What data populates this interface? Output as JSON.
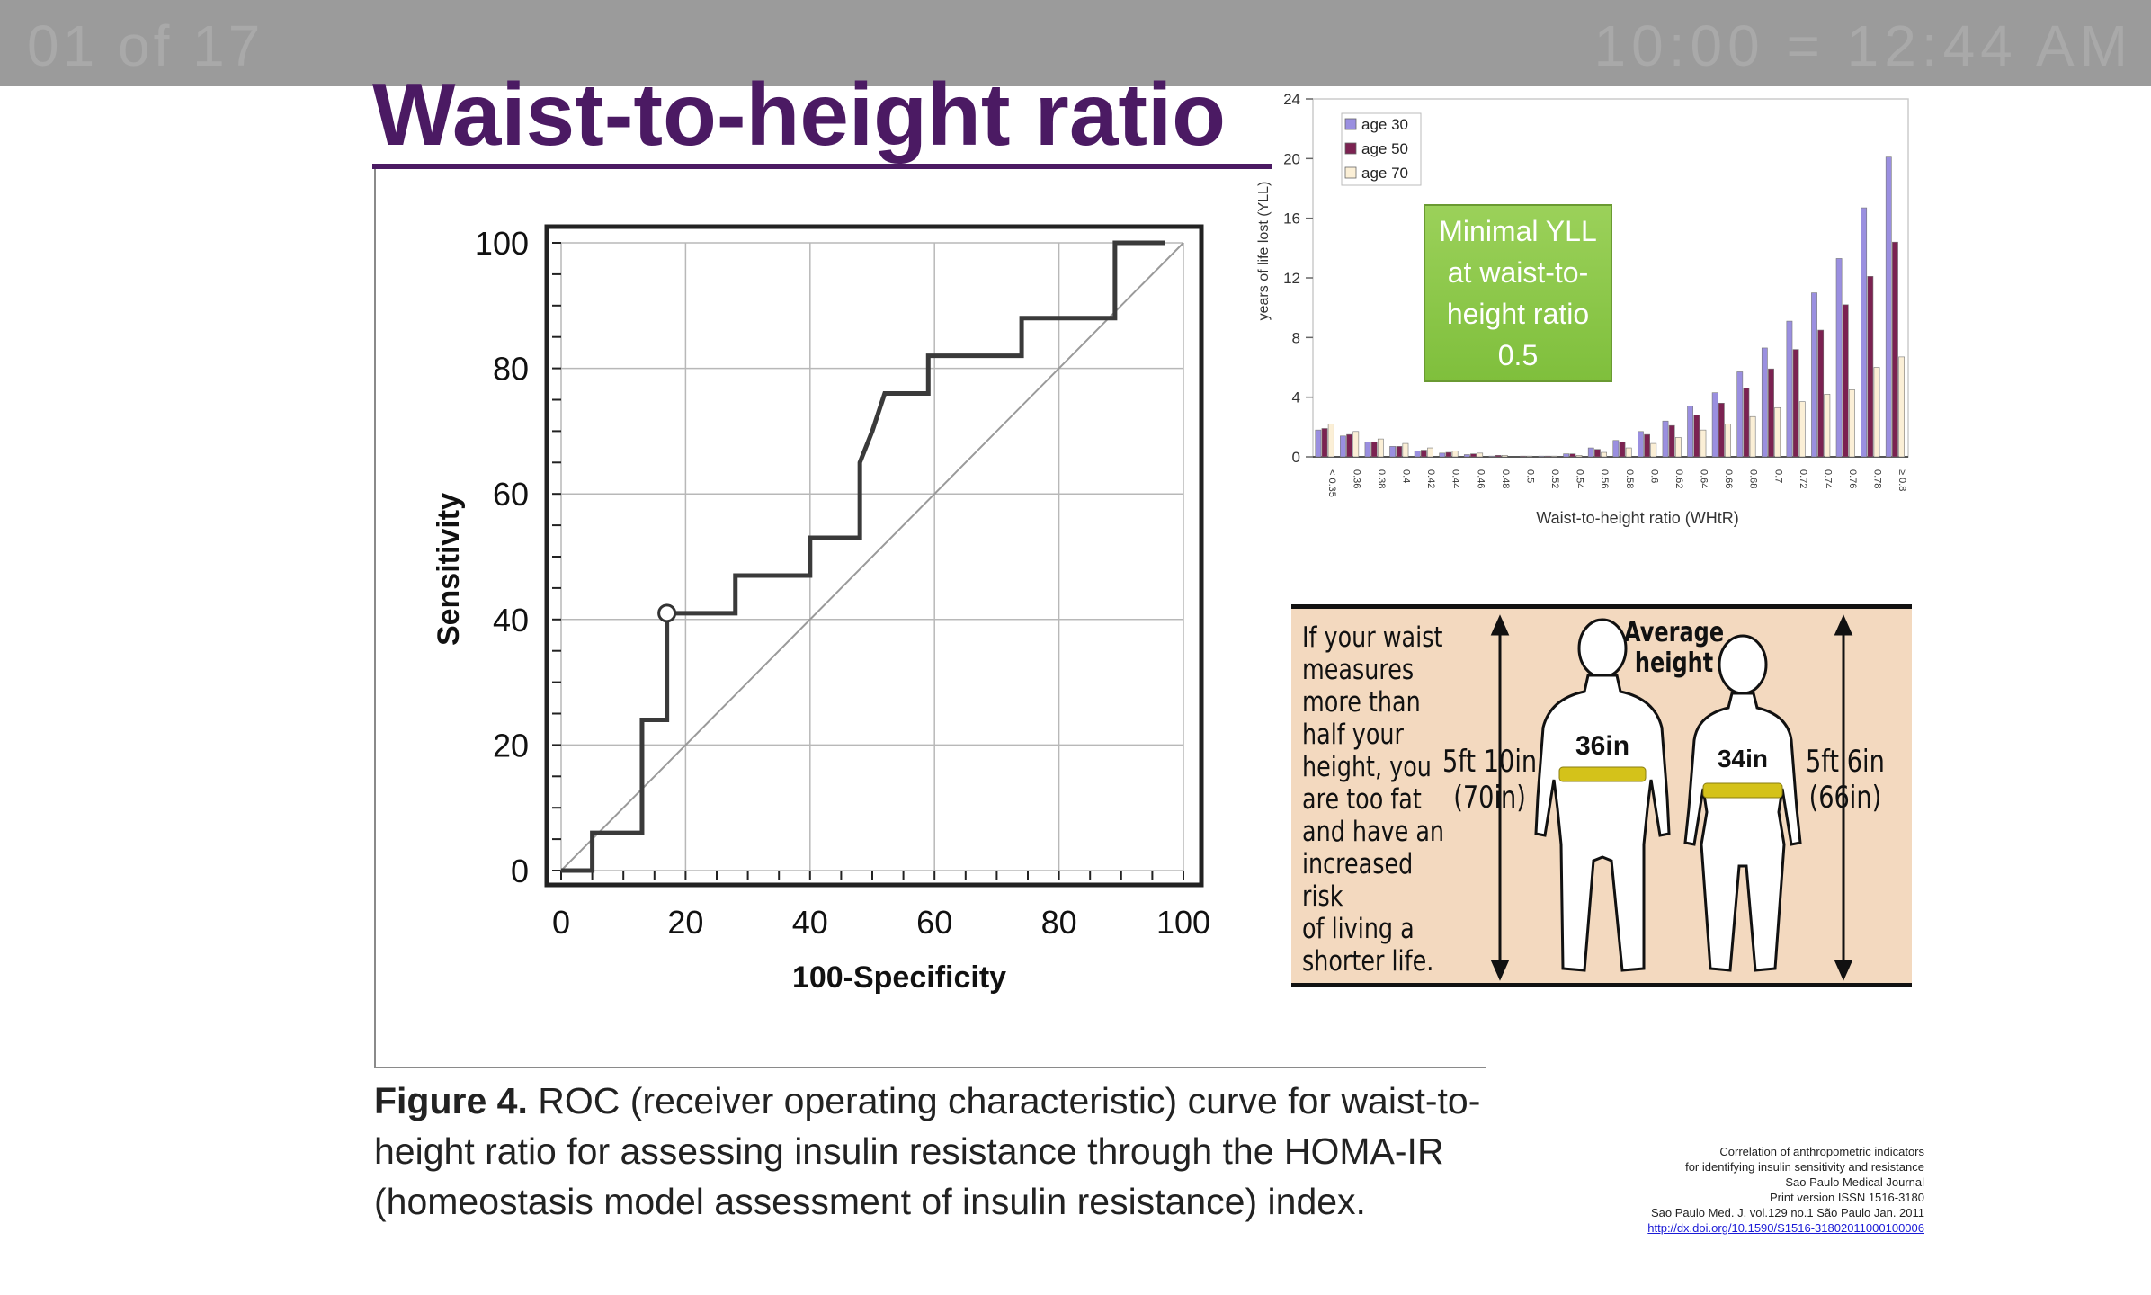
{
  "topbar": {
    "left_ghost": "01 of 17",
    "right_ghost": "10:00 = 12:44 AM"
  },
  "slide": {
    "title": "Waist-to-height ratio"
  },
  "roc_chart": {
    "chart_data": {
      "type": "line",
      "xlabel": "100-Specificity",
      "ylabel": "Sensitivity",
      "xlim": [
        0,
        100
      ],
      "ylim": [
        0,
        100
      ],
      "x_ticks": [
        "0",
        "20",
        "40",
        "60",
        "80",
        "100"
      ],
      "y_ticks": [
        "0",
        "20",
        "40",
        "60",
        "80",
        "100"
      ],
      "grid": true,
      "series": [
        {
          "points": [
            [
              0,
              0
            ],
            [
              5,
              0
            ],
            [
              5,
              6
            ],
            [
              13,
              6
            ],
            [
              13,
              24
            ],
            [
              17,
              24
            ],
            [
              17,
              41
            ],
            [
              28,
              41
            ],
            [
              28,
              47
            ],
            [
              40,
              47
            ],
            [
              40,
              53
            ],
            [
              48,
              53
            ],
            [
              48,
              65
            ],
            [
              50,
              70
            ],
            [
              52,
              76
            ],
            [
              59,
              76
            ],
            [
              59,
              82
            ],
            [
              74,
              82
            ],
            [
              74,
              88
            ],
            [
              89,
              88
            ],
            [
              89,
              100
            ],
            [
              97,
              100
            ]
          ]
        },
        {
          "points": [
            [
              0,
              0
            ],
            [
              100,
              100
            ]
          ]
        }
      ],
      "marker": {
        "x": 17,
        "y": 41
      }
    }
  },
  "yll_chart": {
    "chart_data": {
      "type": "bar",
      "ylabel": "years of life lost (YLL)",
      "xlabel": "Waist-to-height ratio (WHtR)",
      "ylim": [
        0,
        24
      ],
      "y_ticks": [
        "0",
        "4",
        "8",
        "12",
        "16",
        "20",
        "24"
      ],
      "legend_position": "top-left",
      "categories": [
        "< 0.35",
        "0.36",
        "0.38",
        "0.4",
        "0.42",
        "0.44",
        "0.46",
        "0.48",
        "0.5",
        "0.52",
        "0.54",
        "0.56",
        "0.58",
        "0.6",
        "0.62",
        "0.64",
        "0.66",
        "0.68",
        "0.7",
        "0.72",
        "0.74",
        "0.76",
        "0.78",
        "≥ 0.8"
      ],
      "series": [
        {
          "name": "age 30",
          "color": "#9a8fe0",
          "values": [
            1.8,
            1.4,
            1.0,
            0.7,
            0.4,
            0.25,
            0.15,
            0.05,
            0.0,
            0.05,
            0.2,
            0.6,
            1.1,
            1.7,
            2.4,
            3.4,
            4.3,
            5.7,
            7.3,
            9.1,
            11.0,
            13.3,
            16.7,
            20.1
          ]
        },
        {
          "name": "age 50",
          "color": "#7b2251",
          "values": [
            1.9,
            1.5,
            1.0,
            0.7,
            0.45,
            0.3,
            0.2,
            0.1,
            0.05,
            0.05,
            0.2,
            0.5,
            1.0,
            1.5,
            2.1,
            2.8,
            3.6,
            4.6,
            5.9,
            7.2,
            8.5,
            10.2,
            12.1,
            14.4
          ]
        },
        {
          "name": "age 70",
          "color": "#fbefd6",
          "values": [
            2.2,
            1.7,
            1.2,
            0.9,
            0.6,
            0.4,
            0.25,
            0.1,
            0.05,
            0.05,
            0.1,
            0.3,
            0.6,
            0.9,
            1.3,
            1.8,
            2.2,
            2.7,
            3.3,
            3.7,
            4.2,
            4.5,
            6.0,
            6.7
          ]
        }
      ],
      "annotation": {
        "lines": [
          "Minimal YLL",
          "at waist-to-",
          "height ratio",
          "0.5"
        ],
        "color": "#7fbf3c"
      }
    }
  },
  "info_panel": {
    "warning_lines": [
      "If your waist",
      "measures",
      "more than",
      "half your",
      "height, you",
      "are too fat",
      "and have an",
      "increased risk",
      "of living a",
      "shorter life."
    ],
    "average_lines": [
      "Average",
      "height"
    ],
    "man_height_lines": [
      "5ft 10in",
      "(70in)"
    ],
    "man_waist": "36in",
    "woman_height_lines": [
      "5ft 6in",
      "(66in)"
    ],
    "woman_waist": "34in",
    "waist_band_color": "#d4c21a"
  },
  "caption": {
    "figure_label": "Figure 4.",
    "text": "ROC (receiver operating characteristic) curve for waist-to-height ratio for assessing insulin resistance through the HOMA-IR (homeostasis model assessment of insulin resistance) index."
  },
  "citation": {
    "lines": [
      "Correlation of anthropometric indicators",
      "for identifying insulin sensitivity and resistance",
      "Sao Paulo Medical Journal",
      "Print version ISSN 1516-3180",
      "Sao Paulo Med. J. vol.129 no.1 São Paulo Jan. 2011"
    ],
    "link": "http://dx.doi.org/10.1590/S1516-31802011000100006"
  }
}
